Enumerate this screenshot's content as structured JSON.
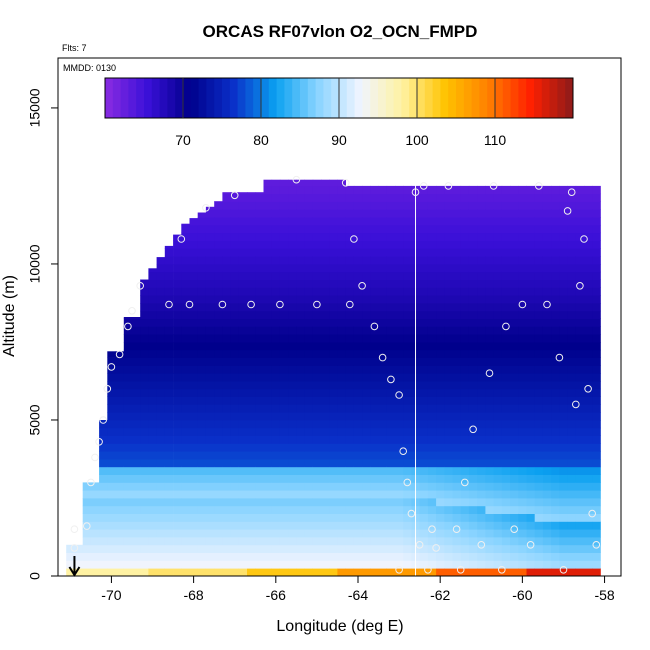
{
  "chart_data": {
    "type": "heatmap",
    "title": "ORCAS RF07vlon O2_OCN_FMPD",
    "annotations": [
      "Flts: 7",
      "MMDD: 0130"
    ],
    "xlabel": "Longitude (deg E)",
    "ylabel": "Altitude (m)",
    "xlim": [
      -71.3,
      -57.6
    ],
    "ylim": [
      0,
      16600
    ],
    "x_ticks": [
      -70,
      -68,
      -66,
      -64,
      -62,
      -60,
      -58
    ],
    "y_ticks": [
      0,
      5000,
      10000,
      15000
    ],
    "colorbar": {
      "range": [
        60,
        120
      ],
      "ticks": [
        70,
        80,
        90,
        100,
        110
      ],
      "colors": [
        "#8a2be2",
        "#3a10d8",
        "#00008b",
        "#0a2ec8",
        "#0aa0f0",
        "#8ad4ff",
        "#f0f4ff",
        "#fff2a0",
        "#ffc300",
        "#ff8000",
        "#ff2000",
        "#8b1a1a"
      ]
    },
    "field_description_values": {
      "surface_warm_values": [
        98,
        100,
        103,
        107,
        111,
        116
      ],
      "boundary_layer": 94,
      "mid_troposphere": 78,
      "upper_troposphere": 63
    },
    "flight_track_longitude": -62.6,
    "arrow_marker": {
      "lon": -70.9,
      "alt": 0
    },
    "observations": [
      {
        "lon": -70.9,
        "alt": 1500
      },
      {
        "lon": -70.9,
        "alt": 900
      },
      {
        "lon": -70.6,
        "alt": 1600
      },
      {
        "lon": -70.5,
        "alt": 3000
      },
      {
        "lon": -70.4,
        "alt": 3800
      },
      {
        "lon": -70.3,
        "alt": 4300
      },
      {
        "lon": -70.2,
        "alt": 5000
      },
      {
        "lon": -70.1,
        "alt": 6000
      },
      {
        "lon": -70.0,
        "alt": 6700
      },
      {
        "lon": -69.8,
        "alt": 7100
      },
      {
        "lon": -69.6,
        "alt": 8000
      },
      {
        "lon": -69.5,
        "alt": 8500
      },
      {
        "lon": -69.3,
        "alt": 9300
      },
      {
        "lon": -68.6,
        "alt": 8700
      },
      {
        "lon": -68.3,
        "alt": 10800
      },
      {
        "lon": -68.1,
        "alt": 8700
      },
      {
        "lon": -67.7,
        "alt": 11800
      },
      {
        "lon": -67.3,
        "alt": 8700
      },
      {
        "lon": -67.0,
        "alt": 12200
      },
      {
        "lon": -66.6,
        "alt": 8700
      },
      {
        "lon": -65.9,
        "alt": 8700
      },
      {
        "lon": -65.5,
        "alt": 12700
      },
      {
        "lon": -65.0,
        "alt": 8700
      },
      {
        "lon": -64.3,
        "alt": 12600
      },
      {
        "lon": -64.2,
        "alt": 8700
      },
      {
        "lon": -64.1,
        "alt": 10800
      },
      {
        "lon": -63.9,
        "alt": 9300
      },
      {
        "lon": -63.6,
        "alt": 8000
      },
      {
        "lon": -63.4,
        "alt": 7000
      },
      {
        "lon": -63.2,
        "alt": 6300
      },
      {
        "lon": -63.0,
        "alt": 5800
      },
      {
        "lon": -62.9,
        "alt": 4000
      },
      {
        "lon": -62.8,
        "alt": 3000
      },
      {
        "lon": -62.7,
        "alt": 2000
      },
      {
        "lon": -62.6,
        "alt": 12300
      },
      {
        "lon": -62.5,
        "alt": 1000
      },
      {
        "lon": -62.4,
        "alt": 12500
      },
      {
        "lon": -62.2,
        "alt": 1500
      },
      {
        "lon": -62.1,
        "alt": 900
      },
      {
        "lon": -61.8,
        "alt": 12500
      },
      {
        "lon": -61.6,
        "alt": 1500
      },
      {
        "lon": -61.4,
        "alt": 3000
      },
      {
        "lon": -61.2,
        "alt": 4700
      },
      {
        "lon": -61.0,
        "alt": 1000
      },
      {
        "lon": -60.8,
        "alt": 6500
      },
      {
        "lon": -60.7,
        "alt": 12500
      },
      {
        "lon": -60.4,
        "alt": 8000
      },
      {
        "lon": -60.2,
        "alt": 1500
      },
      {
        "lon": -60.0,
        "alt": 8700
      },
      {
        "lon": -59.8,
        "alt": 1000
      },
      {
        "lon": -59.6,
        "alt": 12500
      },
      {
        "lon": -59.4,
        "alt": 8700
      },
      {
        "lon": -59.1,
        "alt": 7000
      },
      {
        "lon": -58.9,
        "alt": 11700
      },
      {
        "lon": -58.8,
        "alt": 12300
      },
      {
        "lon": -58.7,
        "alt": 5500
      },
      {
        "lon": -58.6,
        "alt": 9300
      },
      {
        "lon": -58.5,
        "alt": 10800
      },
      {
        "lon": -58.4,
        "alt": 6000
      },
      {
        "lon": -58.3,
        "alt": 2000
      },
      {
        "lon": -58.2,
        "alt": 1000
      },
      {
        "lon": -59.0,
        "alt": 200
      },
      {
        "lon": -60.5,
        "alt": 200
      },
      {
        "lon": -61.5,
        "alt": 200
      },
      {
        "lon": -62.3,
        "alt": 200
      },
      {
        "lon": -63.0,
        "alt": 200
      }
    ]
  }
}
